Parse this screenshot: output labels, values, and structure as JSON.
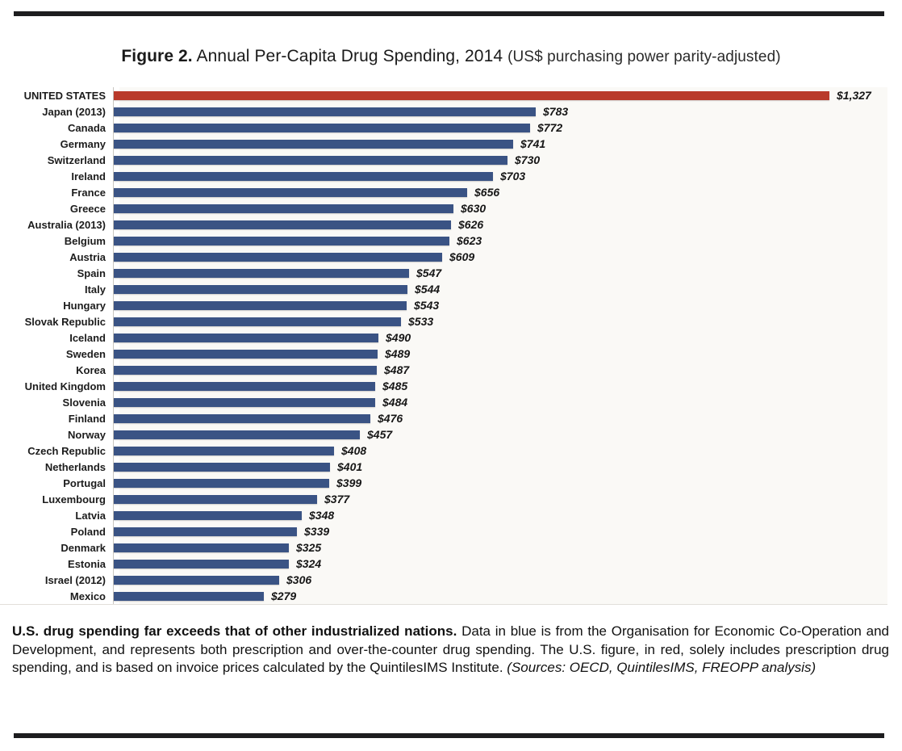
{
  "title": {
    "figure_label": "Figure 2.",
    "main": " Annual Per-Capita Drug Spending, 2014 ",
    "subtitle": "(US$ purchasing power parity-adjusted)"
  },
  "chart_data": {
    "type": "bar",
    "orientation": "horizontal",
    "title": "Annual Per-Capita Drug Spending, 2014 (US$ purchasing power parity-adjusted)",
    "xlim": [
      0,
      1327
    ],
    "grid": false,
    "legend": "none",
    "value_prefix": "$",
    "colors": {
      "us_red": "#b93a2b",
      "oecd_blue": "#3a5384"
    },
    "color_note": "UNITED STATES bar is red; all other bars are blue",
    "categories": [
      "UNITED STATES",
      "Japan (2013)",
      "Canada",
      "Germany",
      "Switzerland",
      "Ireland",
      "France",
      "Greece",
      "Australia (2013)",
      "Belgium",
      "Austria",
      "Spain",
      "Italy",
      "Hungary",
      "Slovak Republic",
      "Iceland",
      "Sweden",
      "Korea",
      "United Kingdom",
      "Slovenia",
      "Finland",
      "Norway",
      "Czech Republic",
      "Netherlands",
      "Portugal",
      "Luxembourg",
      "Latvia",
      "Poland",
      "Denmark",
      "Estonia",
      "Israel (2012)",
      "Mexico"
    ],
    "values": [
      1327,
      783,
      772,
      741,
      730,
      703,
      656,
      630,
      626,
      623,
      609,
      547,
      544,
      543,
      533,
      490,
      489,
      487,
      485,
      484,
      476,
      457,
      408,
      401,
      399,
      377,
      348,
      339,
      325,
      324,
      306,
      279
    ],
    "value_labels": [
      "$1,327",
      "$783",
      "$772",
      "$741",
      "$730",
      "$703",
      "$656",
      "$630",
      "$626",
      "$623",
      "$609",
      "$547",
      "$544",
      "$543",
      "$533",
      "$490",
      "$489",
      "$487",
      "$485",
      "$484",
      "$476",
      "$457",
      "$408",
      "$401",
      "$399",
      "$377",
      "$348",
      "$339",
      "$325",
      "$324",
      "$306",
      "$279"
    ]
  },
  "caption": {
    "lead_bold": "U.S. drug spending far exceeds that of other industrialized nations.",
    "body": "  Data in blue is from the Organisation for Economic Co-Operation and Development, and represents both prescription and over-the-counter drug spending. The U.S. figure, in red, solely includes prescription drug spending, and is based on invoice prices calculated by the QuintilesIMS Institute. ",
    "sources_italic": "(Sources: OECD, QuintilesIMS, FREOPP analysis)"
  }
}
